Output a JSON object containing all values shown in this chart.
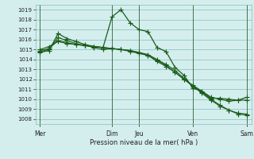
{
  "title": "Pression niveau de la mer( hPa )",
  "bg_color": "#d4eeee",
  "grid_color": "#88bbbb",
  "line_color": "#1a5c1a",
  "ylim": [
    1007.5,
    1019.5
  ],
  "ytick_vals": [
    1008,
    1009,
    1010,
    1011,
    1012,
    1013,
    1014,
    1015,
    1016,
    1017,
    1018,
    1019
  ],
  "xtick_labels": [
    "Mer",
    "Dim",
    "Jeu",
    "Ven",
    "Sam"
  ],
  "xtick_positions": [
    0,
    8,
    11,
    17,
    23
  ],
  "vline_positions": [
    0,
    8,
    11,
    17,
    23
  ],
  "series": [
    [
      1014.7,
      1014.9,
      1016.6,
      1016.1,
      1015.8,
      1015.5,
      1015.3,
      1015.2,
      1018.3,
      1019.0,
      1017.7,
      1017.0,
      1016.8,
      1015.2,
      1014.8,
      1013.2,
      1012.4,
      1011.1,
      1010.8,
      1010.2,
      1010.0,
      1009.8,
      1009.9,
      1010.2
    ],
    [
      1014.8,
      1015.0,
      1016.2,
      1015.9,
      1015.6,
      1015.4,
      1015.2,
      1015.0,
      1015.1,
      1015.0,
      1014.9,
      1014.7,
      1014.5,
      1014.0,
      1013.5,
      1012.9,
      1012.1,
      1011.3,
      1010.6,
      1009.9,
      1009.3,
      1008.9,
      1008.6,
      1008.5
    ],
    [
      1014.9,
      1015.1,
      1015.9,
      1015.7,
      1015.5,
      1015.4,
      1015.3,
      1015.2,
      1015.1,
      1015.0,
      1014.9,
      1014.7,
      1014.4,
      1013.8,
      1013.3,
      1012.7,
      1012.0,
      1011.3,
      1010.7,
      1010.0,
      1009.4,
      1008.9,
      1008.5,
      1008.4
    ],
    [
      1015.0,
      1015.3,
      1015.8,
      1015.6,
      1015.5,
      1015.4,
      1015.3,
      1015.2,
      1015.1,
      1015.0,
      1014.8,
      1014.6,
      1014.4,
      1013.9,
      1013.4,
      1012.7,
      1012.0,
      1011.4,
      1010.8,
      1010.1,
      1010.1,
      1010.0,
      1009.9,
      1009.9
    ]
  ],
  "n_points": 24
}
